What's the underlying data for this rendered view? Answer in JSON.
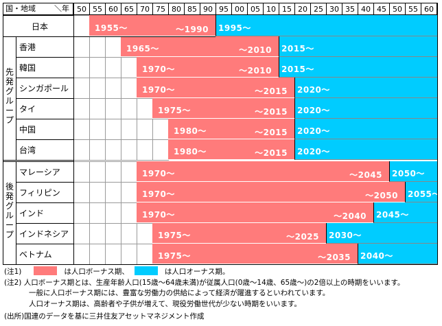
{
  "chart_data": {
    "type": "table",
    "title": "",
    "header": {
      "corner_label_left": "国・地域",
      "corner_label_right": "＼年",
      "year_ticks": [
        "50",
        "55",
        "60",
        "65",
        "70",
        "75",
        "80",
        "85",
        "90",
        "95",
        "00",
        "05",
        "10",
        "15",
        "20",
        "25",
        "30",
        "35",
        "40",
        "45",
        "50",
        "55",
        "60"
      ],
      "year_range": [
        1950,
        2065
      ]
    },
    "colors": {
      "bonus": "#ff7b7b",
      "onus": "#00ccff",
      "grid": "#999999",
      "border": "#000000"
    },
    "groups": [
      {
        "label": "",
        "countries": [
          {
            "name": "日本",
            "bonus_start": 1955,
            "bonus_end": 1990,
            "onus_start": 1995,
            "bonus_start_label": "1955～",
            "bonus_end_label": "～1990",
            "onus_label": "1995～"
          }
        ]
      },
      {
        "label": "先発グループ",
        "countries": [
          {
            "name": "香港",
            "bonus_start": 1965,
            "bonus_end": 2010,
            "onus_start": 2015,
            "bonus_start_label": "1965～",
            "bonus_end_label": "～2010",
            "onus_label": "2015～"
          },
          {
            "name": "韓国",
            "bonus_start": 1970,
            "bonus_end": 2010,
            "onus_start": 2015,
            "bonus_start_label": "1970～",
            "bonus_end_label": "～2010",
            "onus_label": "2015～"
          },
          {
            "name": "シンガポール",
            "bonus_start": 1970,
            "bonus_end": 2015,
            "onus_start": 2020,
            "bonus_start_label": "1970～",
            "bonus_end_label": "～2015",
            "onus_label": "2020～"
          },
          {
            "name": "タイ",
            "bonus_start": 1975,
            "bonus_end": 2015,
            "onus_start": 2020,
            "bonus_start_label": "1975～",
            "bonus_end_label": "～2015",
            "onus_label": "2020～"
          },
          {
            "name": "中国",
            "bonus_start": 1980,
            "bonus_end": 2015,
            "onus_start": 2020,
            "bonus_start_label": "1980～",
            "bonus_end_label": "～2015",
            "onus_label": "2020～"
          },
          {
            "name": "台湾",
            "bonus_start": 1980,
            "bonus_end": 2015,
            "onus_start": 2020,
            "bonus_start_label": "1980～",
            "bonus_end_label": "～2015",
            "onus_label": "2020～"
          }
        ]
      },
      {
        "label": "後発グループ",
        "countries": [
          {
            "name": "マレーシア",
            "bonus_start": 1970,
            "bonus_end": 2045,
            "onus_start": 2050,
            "bonus_start_label": "1970～",
            "bonus_end_label": "～2045",
            "onus_label": "2050～"
          },
          {
            "name": "フィリピン",
            "bonus_start": 1970,
            "bonus_end": 2050,
            "onus_start": 2055,
            "bonus_start_label": "1970～",
            "bonus_end_label": "～2050",
            "onus_label": "2055～"
          },
          {
            "name": "インド",
            "bonus_start": 1970,
            "bonus_end": 2040,
            "onus_start": 2045,
            "bonus_start_label": "1970～",
            "bonus_end_label": "～2040",
            "onus_label": "2045～"
          },
          {
            "name": "インドネシア",
            "bonus_start": 1975,
            "bonus_end": 2025,
            "onus_start": 2030,
            "bonus_start_label": "1975～",
            "bonus_end_label": "～2025",
            "onus_label": "2030～"
          },
          {
            "name": "ベトナム",
            "bonus_start": 1975,
            "bonus_end": 2035,
            "onus_start": 2040,
            "bonus_start_label": "1975～",
            "bonus_end_label": "～2035",
            "onus_label": "2040～"
          }
        ]
      }
    ],
    "legend": [
      {
        "name": "人口ボーナス期",
        "color": "#ff7b7b"
      },
      {
        "name": "人口オーナス期",
        "color": "#00ccff"
      }
    ]
  },
  "notes": {
    "note1_prefix": "(注1)",
    "note1_bonus_text": "は人口ボーナス期、",
    "note1_onus_text": "は人口オーナス期。",
    "note2_prefix": "(注2)",
    "note2_line1": "人口ボーナス期とは、生産年齢人口(15歳～64歳未満)が従属人口(0歳～14歳、65歳～)の2倍以上の時期をいいます。",
    "note2_line2": "一般に人口ボーナス期には、豊富な労働力の供給によって経済が躍進するといわれています。",
    "note2_line3": "人口オーナス期は、高齢者や子供が増えて、現役労働世代が少ない時期をいいます。",
    "source": "(出所)国連のデータを基に三井住友アセットマネジメント作成"
  }
}
